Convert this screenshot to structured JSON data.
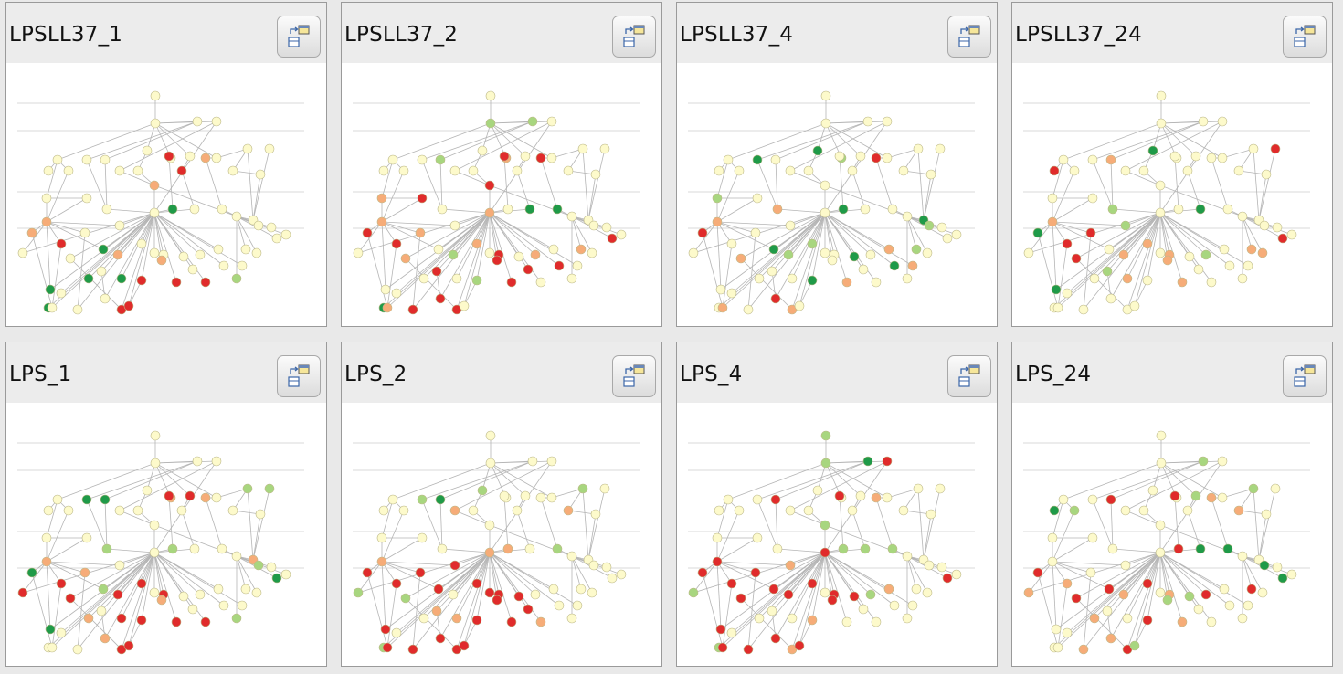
{
  "panels": [
    {
      "title": "LPSLL37_1",
      "layout_button_icon": "layout-icon"
    },
    {
      "title": "LPSLL37_2",
      "layout_button_icon": "layout-icon"
    },
    {
      "title": "LPSLL37_4",
      "layout_button_icon": "layout-icon"
    },
    {
      "title": "LPSLL37_24",
      "layout_button_icon": "layout-icon"
    },
    {
      "title": "LPS_1",
      "layout_button_icon": "layout-icon"
    },
    {
      "title": "LPS_2",
      "layout_button_icon": "layout-icon"
    },
    {
      "title": "LPS_4",
      "layout_button_icon": "layout-icon"
    },
    {
      "title": "LPS_24",
      "layout_button_icon": "layout-icon"
    }
  ],
  "colors": {
    "default_node": "#fdfacb",
    "strong_up": "#e02b2b",
    "weak_up": "#f6ac78",
    "weak_down": "#a8d67f",
    "strong_down": "#1f9a48",
    "edge": "#b5b5b5",
    "band_line": "#d8d8d8"
  },
  "network": {
    "nodes": [
      {
        "id": "root"
      },
      {
        "id": "b1"
      },
      {
        "id": "b2"
      },
      {
        "id": "b3"
      },
      {
        "id": "b4"
      },
      {
        "id": "b5"
      },
      {
        "id": "b6"
      },
      {
        "id": "b7"
      },
      {
        "id": "c1"
      },
      {
        "id": "c2"
      },
      {
        "id": "c3"
      },
      {
        "id": "c4"
      },
      {
        "id": "c5"
      },
      {
        "id": "c6"
      },
      {
        "id": "c7"
      },
      {
        "id": "c8"
      },
      {
        "id": "c9"
      },
      {
        "id": "c10"
      },
      {
        "id": "c11"
      },
      {
        "id": "c12"
      },
      {
        "id": "c13"
      },
      {
        "id": "c14"
      },
      {
        "id": "d1"
      },
      {
        "id": "d2"
      },
      {
        "id": "d3"
      },
      {
        "id": "d4"
      },
      {
        "id": "d5"
      },
      {
        "id": "d6"
      },
      {
        "id": "d7"
      },
      {
        "id": "d8"
      },
      {
        "id": "hubL"
      },
      {
        "id": "hubC"
      },
      {
        "id": "hubR"
      },
      {
        "id": "e1"
      },
      {
        "id": "e2"
      },
      {
        "id": "e3"
      },
      {
        "id": "e4"
      },
      {
        "id": "e5"
      },
      {
        "id": "e6"
      },
      {
        "id": "e7"
      },
      {
        "id": "e8"
      },
      {
        "id": "e9"
      },
      {
        "id": "e10"
      },
      {
        "id": "e11"
      },
      {
        "id": "e12"
      },
      {
        "id": "e13"
      },
      {
        "id": "e14"
      },
      {
        "id": "f1"
      },
      {
        "id": "f2"
      },
      {
        "id": "f3"
      },
      {
        "id": "f4"
      },
      {
        "id": "f5"
      },
      {
        "id": "f6"
      },
      {
        "id": "f7"
      },
      {
        "id": "f8"
      },
      {
        "id": "f9"
      },
      {
        "id": "f10"
      },
      {
        "id": "f11"
      },
      {
        "id": "f12"
      },
      {
        "id": "f13"
      },
      {
        "id": "f14"
      },
      {
        "id": "f15"
      },
      {
        "id": "f16"
      },
      {
        "id": "f17"
      },
      {
        "id": "f18"
      },
      {
        "id": "g1"
      },
      {
        "id": "g2"
      },
      {
        "id": "g3"
      },
      {
        "id": "g4"
      },
      {
        "id": "g5"
      },
      {
        "id": "g6"
      },
      {
        "id": "g7"
      }
    ],
    "edges": [
      [
        "root",
        "b1"
      ],
      [
        "b1",
        "b2"
      ],
      [
        "b1",
        "b3"
      ],
      [
        "b1",
        "b4"
      ],
      [
        "b1",
        "b5"
      ],
      [
        "b1",
        "b6"
      ],
      [
        "b1",
        "b7"
      ],
      [
        "b1",
        "c1"
      ],
      [
        "b2",
        "c4"
      ],
      [
        "b2",
        "c5"
      ],
      [
        "b3",
        "c6"
      ],
      [
        "b4",
        "c7"
      ],
      [
        "b5",
        "c8"
      ],
      [
        "b6",
        "c9"
      ],
      [
        "b7",
        "c10"
      ],
      [
        "b7",
        "c11"
      ],
      [
        "c1",
        "c2"
      ],
      [
        "c1",
        "c3"
      ],
      [
        "c1",
        "d1"
      ],
      [
        "c4",
        "d3"
      ],
      [
        "c5",
        "d3"
      ],
      [
        "c6",
        "d4"
      ],
      [
        "c7",
        "d4"
      ],
      [
        "c8",
        "d5"
      ],
      [
        "c9",
        "d6"
      ],
      [
        "c10",
        "d7"
      ],
      [
        "c11",
        "d8"
      ],
      [
        "c12",
        "d8"
      ],
      [
        "c13",
        "c14"
      ],
      [
        "c14",
        "d8"
      ],
      [
        "c11",
        "c13"
      ],
      [
        "d1",
        "d2"
      ],
      [
        "d1",
        "hubL"
      ],
      [
        "d2",
        "hubL"
      ],
      [
        "d3",
        "hubC"
      ],
      [
        "d4",
        "hubC"
      ],
      [
        "d5",
        "hubC"
      ],
      [
        "d6",
        "hubC"
      ],
      [
        "d7",
        "hubR"
      ],
      [
        "d8",
        "hubR"
      ],
      [
        "b3",
        "hubC"
      ],
      [
        "d4",
        "hubR"
      ],
      [
        "hubL",
        "e1"
      ],
      [
        "hubL",
        "e2"
      ],
      [
        "hubL",
        "e3"
      ],
      [
        "hubL",
        "e4"
      ],
      [
        "hubL",
        "e5"
      ],
      [
        "hubC",
        "e4"
      ],
      [
        "hubC",
        "e5"
      ],
      [
        "hubC",
        "e6"
      ],
      [
        "hubC",
        "e7"
      ],
      [
        "hubC",
        "e8"
      ],
      [
        "hubC",
        "e9"
      ],
      [
        "hubC",
        "e10"
      ],
      [
        "hubC",
        "e11"
      ],
      [
        "hubC",
        "f1"
      ],
      [
        "hubC",
        "f2"
      ],
      [
        "hubC",
        "f3"
      ],
      [
        "hubC",
        "f4"
      ],
      [
        "hubC",
        "f5"
      ],
      [
        "hubC",
        "f6"
      ],
      [
        "hubC",
        "f7"
      ],
      [
        "hubC",
        "f8"
      ],
      [
        "hubC",
        "f9"
      ],
      [
        "hubC",
        "f10"
      ],
      [
        "hubC",
        "f11"
      ],
      [
        "hubC",
        "f12"
      ],
      [
        "hubC",
        "f13"
      ],
      [
        "hubC",
        "f14"
      ],
      [
        "hubC",
        "g1"
      ],
      [
        "hubC",
        "g2"
      ],
      [
        "hubR",
        "e12"
      ],
      [
        "hubR",
        "e13"
      ],
      [
        "hubR",
        "e14"
      ],
      [
        "hubR",
        "f15"
      ],
      [
        "hubR",
        "f16"
      ],
      [
        "hubR",
        "f17"
      ],
      [
        "hubR",
        "f18"
      ],
      [
        "hubL",
        "f1"
      ],
      [
        "hubL",
        "f2"
      ],
      [
        "e1",
        "g3"
      ],
      [
        "e2",
        "g3"
      ],
      [
        "e3",
        "g4"
      ],
      [
        "f3",
        "g5"
      ],
      [
        "f5",
        "g6"
      ],
      [
        "f8",
        "g7"
      ],
      [
        "hubC",
        "g3"
      ],
      [
        "hubC",
        "g4"
      ],
      [
        "hubC",
        "g5"
      ],
      [
        "hubC",
        "g6"
      ],
      [
        "hubC",
        "g7"
      ],
      [
        "c3",
        "hubL"
      ]
    ]
  },
  "states": [
    {
      "c8": "strong_up",
      "c9": "strong_up",
      "c10": "weak_up",
      "d4": "weak_up",
      "d5": "strong_down",
      "hubL": "weak_up",
      "e1": "weak_up",
      "e2": "strong_up",
      "e4": "strong_down",
      "f2": "strong_down",
      "f4": "strong_down",
      "f6": "weak_up",
      "f7": "strong_down",
      "f8": "strong_up",
      "f9": "weak_up",
      "f10": "strong_up",
      "f12": "strong_up",
      "f15": "weak_down",
      "g1": "strong_down",
      "g5": "strong_up",
      "g7": "strong_up"
    },
    {
      "b1": "weak_down",
      "b2": "weak_down",
      "b5": "weak_up",
      "c5": "weak_down",
      "c8": "strong_up",
      "c10": "strong_up",
      "d1": "weak_up",
      "d2": "strong_up",
      "d4": "strong_up",
      "d6": "strong_down",
      "d7": "strong_down",
      "hubL": "weak_up",
      "hubC": "weak_up",
      "e1": "strong_up",
      "e2": "strong_up",
      "e3": "weak_up",
      "e6": "weak_up",
      "e8": "strong_up",
      "e10": "weak_up",
      "e12": "weak_up",
      "e14": "strong_up",
      "f3": "weak_up",
      "f5": "strong_up",
      "f6": "weak_down",
      "f8": "weak_down",
      "f9": "strong_up",
      "f10": "strong_up",
      "f11": "strong_up",
      "f13": "strong_up",
      "g1": "strong_down",
      "g3": "weak_up",
      "g4": "strong_up",
      "g5": "strong_up",
      "g6": "strong_up"
    },
    {
      "b4": "strong_down",
      "b5": "weak_down",
      "c4": "strong_down",
      "c10": "strong_up",
      "d1": "weak_down",
      "d3": "weak_up",
      "d5": "strong_down",
      "d8": "strong_down",
      "hubL": "weak_up",
      "e1": "strong_up",
      "e4": "strong_down",
      "e6": "weak_down",
      "e9": "strong_down",
      "e11": "weak_up",
      "e12": "weak_down",
      "e13": "weak_down",
      "f3": "weak_up",
      "f6": "weak_down",
      "f8": "strong_down",
      "f10": "weak_up",
      "f13": "strong_down",
      "f14": "weak_up",
      "g3": "weak_up",
      "g5": "weak_up",
      "g6": "strong_up"
    },
    {
      "b4": "strong_down",
      "c2": "strong_up",
      "c5": "weak_up",
      "c12": "strong_up",
      "d3": "weak_down",
      "d6": "strong_down",
      "hubL": "weak_up",
      "e1": "strong_down",
      "e2": "strong_up",
      "e3": "strong_up",
      "e5": "weak_down",
      "e6": "weak_up",
      "e8": "weak_up",
      "e10": "weak_down",
      "e12": "weak_up",
      "e14": "strong_up",
      "f2": "strong_down",
      "f3": "strong_up",
      "f5": "weak_down",
      "f6": "weak_up",
      "f7": "weak_up",
      "f9": "weak_up",
      "f10": "weak_up",
      "f16": "weak_up"
    },
    {
      "b5": "weak_up",
      "b6": "strong_up",
      "c4": "strong_down",
      "c5": "strong_down",
      "c8": "strong_up",
      "c10": "weak_up",
      "c11": "weak_down",
      "c12": "weak_down",
      "d3": "weak_down",
      "d5": "weak_down",
      "d8": "weak_up",
      "hubL": "weak_up",
      "e1": "strong_down",
      "e2": "strong_up",
      "e3": "weak_up",
      "e4": "weak_down",
      "e6": "strong_up",
      "e8": "strong_up",
      "e13": "weak_down",
      "e14": "strong_down",
      "f1": "strong_up",
      "f2": "strong_down",
      "f3": "strong_up",
      "f4": "weak_up",
      "f6": "strong_up",
      "f7": "strong_up",
      "f8": "strong_up",
      "f9": "weak_up",
      "f10": "strong_up",
      "f12": "strong_up",
      "f15": "weak_down",
      "g5": "strong_up",
      "g6": "weak_up",
      "g7": "strong_up"
    },
    {
      "b4": "weak_down",
      "c4": "weak_down",
      "c5": "strong_down",
      "c6": "weak_up",
      "c11": "weak_down",
      "c13": "weak_up",
      "d5": "weak_up",
      "hubL": "weak_up",
      "hubC": "weak_up",
      "d7": "weak_down",
      "e1": "strong_up",
      "e2": "strong_up",
      "e3": "strong_up",
      "e4": "strong_up",
      "e5": "strong_up",
      "e6": "strong_up",
      "e7": "strong_up",
      "e8": "strong_up",
      "e9": "strong_up",
      "f1": "weak_down",
      "f2": "strong_up",
      "f3": "weak_down",
      "f5": "weak_up",
      "f7": "weak_up",
      "f8": "strong_up",
      "f9": "strong_up",
      "f10": "strong_up",
      "f11": "strong_up",
      "f12": "weak_up",
      "g1": "weak_down",
      "g3": "strong_up",
      "g4": "strong_up",
      "g5": "strong_up",
      "g6": "strong_up",
      "g7": "strong_up"
    },
    {
      "root": "weak_down",
      "b1": "weak_down",
      "b2": "strong_down",
      "b3": "strong_up",
      "c5": "strong_up",
      "c8": "strong_up",
      "c10": "weak_up",
      "d4": "weak_down",
      "d5": "weak_down",
      "d6": "weak_down",
      "hubC": "strong_up",
      "hubL": "strong_up",
      "d7": "weak_down",
      "e1": "strong_up",
      "e2": "strong_up",
      "e3": "strong_up",
      "e4": "strong_up",
      "e5": "weak_up",
      "e6": "strong_up",
      "e8": "strong_up",
      "e9": "strong_up",
      "e10": "weak_down",
      "e11": "weak_up",
      "e14": "strong_up",
      "f1": "weak_down",
      "f2": "strong_up",
      "f3": "strong_up",
      "f6": "strong_up",
      "f8": "weak_up",
      "f9": "strong_up",
      "g1": "weak_down",
      "g3": "strong_up",
      "g4": "strong_up",
      "g5": "weak_up",
      "g6": "strong_up",
      "g7": "strong_up"
    },
    {
      "b2": "weak_down",
      "b6": "weak_down",
      "c2": "strong_down",
      "c3": "weak_down",
      "c5": "strong_up",
      "c8": "strong_up",
      "c10": "weak_up",
      "c11": "weak_down",
      "c13": "weak_up",
      "d5": "strong_up",
      "d6": "strong_down",
      "d7": "strong_down",
      "e1": "strong_up",
      "e2": "weak_up",
      "e4": "strong_up",
      "e6": "strong_up",
      "e8": "weak_up",
      "e9": "weak_down",
      "e10": "strong_up",
      "e12": "strong_up",
      "e13": "strong_down",
      "e14": "strong_down",
      "f1": "weak_up",
      "f3": "strong_up",
      "f4": "weak_up",
      "f6": "weak_up",
      "f8": "strong_up",
      "f9": "weak_down",
      "f10": "weak_up",
      "g4": "weak_up",
      "g5": "strong_up",
      "g6": "weak_up",
      "g7": "weak_down"
    }
  ]
}
